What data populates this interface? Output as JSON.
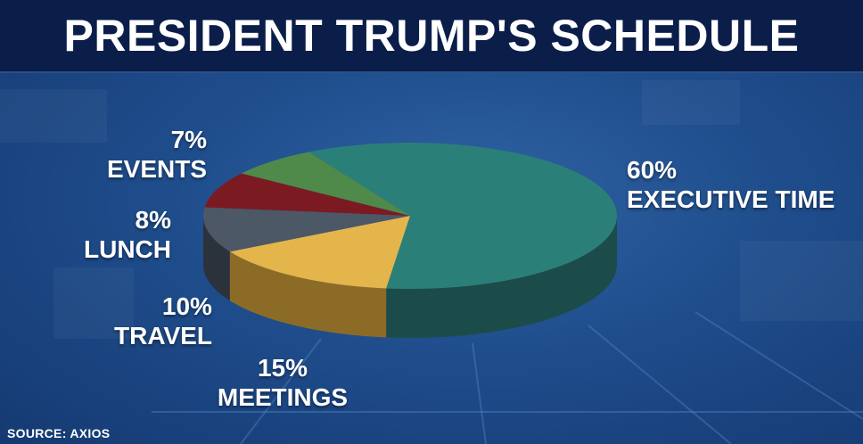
{
  "title": "PRESIDENT TRUMP'S SCHEDULE",
  "source": "SOURCE: AXIOS",
  "chart_data": {
    "type": "pie",
    "title": "PRESIDENT TRUMP'S SCHEDULE",
    "slices": [
      {
        "label": "EXECUTIVE TIME",
        "value": 60,
        "value_text": "60%",
        "color": "#2b7f79",
        "side_color": "#1c4c49"
      },
      {
        "label": "MEETINGS",
        "value": 15,
        "value_text": "15%",
        "color": "#e3b54b",
        "side_color": "#8c6b27"
      },
      {
        "label": "TRAVEL",
        "value": 10,
        "value_text": "10%",
        "color": "#4c5866",
        "side_color": "#2c323b"
      },
      {
        "label": "LUNCH",
        "value": 8,
        "value_text": "8%",
        "color": "#7c1a22",
        "side_color": "#4d1015"
      },
      {
        "label": "EVENTS",
        "value": 7,
        "value_text": "7%",
        "color": "#4f8a4b",
        "side_color": "#2f5530"
      }
    ]
  }
}
